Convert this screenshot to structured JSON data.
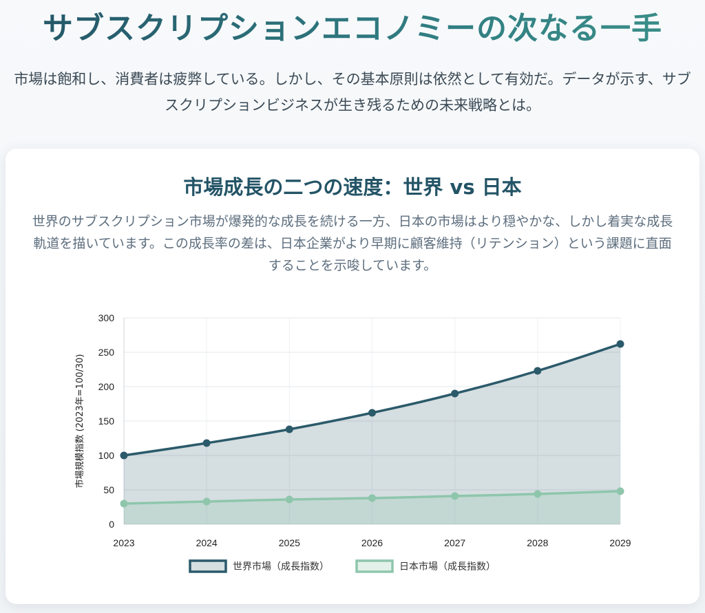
{
  "page": {
    "title": "サブスクリプションエコノミーの次なる一手",
    "subtitle": "市場は飽和し、消費者は疲弊している。しかし、その基本原則は依然として有効だ。データが示す、サブスクリプションビジネスが生き残るための未来戦略とは。"
  },
  "card": {
    "title": "市場成長の二つの速度：世界 vs 日本",
    "description": "世界のサブスクリプション市場が爆発的な成長を続ける一方、日本の市場はより穏やかな、しかし着実な成長軌道を描いています。この成長率の差は、日本企業がより早期に顧客維持（リテンション）という課題に直面することを示唆しています。"
  },
  "chart_data": {
    "type": "area",
    "title": "",
    "xlabel": "",
    "ylabel": "市場規模指数 (2023年=100/30)",
    "categories": [
      "2023",
      "2024",
      "2025",
      "2026",
      "2027",
      "2028",
      "2029"
    ],
    "ylim": [
      0,
      300
    ],
    "yticks": [
      0,
      50,
      100,
      150,
      200,
      250,
      300
    ],
    "grid": true,
    "legend_position": "bottom",
    "series": [
      {
        "name": "世界市場（成長指数）",
        "values": [
          100,
          118,
          138,
          162,
          190,
          223,
          262
        ],
        "color": "#2b5a6a",
        "fill": "rgba(43, 90, 106, 0.20)"
      },
      {
        "name": "日本市場（成長指数）",
        "values": [
          30,
          33,
          36,
          38,
          41,
          44,
          48
        ],
        "color": "#8ec6ac",
        "fill": "rgba(142, 198, 172, 0.25)"
      }
    ]
  }
}
